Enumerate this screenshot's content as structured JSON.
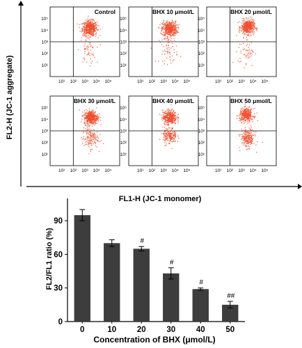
{
  "flow": {
    "y_axis_label": "FL2-H (JC-1 aggregate)",
    "x_axis_label": "FL1-H (JC-1 monomer)",
    "tick_labels": [
      "10⁰",
      "10¹",
      "10²",
      "10³",
      "10⁴",
      "10⁵"
    ],
    "dot_color": "#f05030",
    "panels": [
      {
        "label": "Control"
      },
      {
        "label": "BHX 10 μmol/L"
      },
      {
        "label": "BHX 20 μmol/L"
      },
      {
        "label": "BHX 30 μmol/L"
      },
      {
        "label": "BHX 40 μmol/L"
      },
      {
        "label": "BHX 50 μmol/L"
      }
    ]
  },
  "chart_data": [
    {
      "type": "scatter",
      "title": "",
      "xlabel": "FL1-H (JC-1 monomer)",
      "ylabel": "FL2-H (JC-1 aggregate)",
      "x_scale": "log",
      "y_scale": "log",
      "xlim": [
        1,
        1000000
      ],
      "ylim": [
        1,
        1000000
      ],
      "panels": [
        "Control",
        "BHX 10 μmol/L",
        "BHX 20 μmol/L",
        "BHX 30 μmol/L",
        "BHX 40 μmol/L",
        "BHX 50 μmol/L"
      ],
      "quadrant_gate": {
        "x": 100,
        "y": 1000
      }
    },
    {
      "type": "bar",
      "title": "",
      "xlabel": "Concentration of BHX (μmol/L)",
      "ylabel": "FL2/FL1 ratio (%)",
      "categories": [
        "0",
        "10",
        "20",
        "30",
        "40",
        "50"
      ],
      "values": [
        95,
        70,
        65,
        43,
        29,
        15
      ],
      "errors": [
        5,
        3,
        2,
        5,
        1,
        3
      ],
      "annotations": [
        "",
        "",
        "#",
        "#",
        "#",
        "##"
      ],
      "ylim": [
        0,
        110
      ],
      "yticks": [
        0,
        30,
        60,
        90
      ],
      "bar_color": "#3d3d3d"
    }
  ]
}
